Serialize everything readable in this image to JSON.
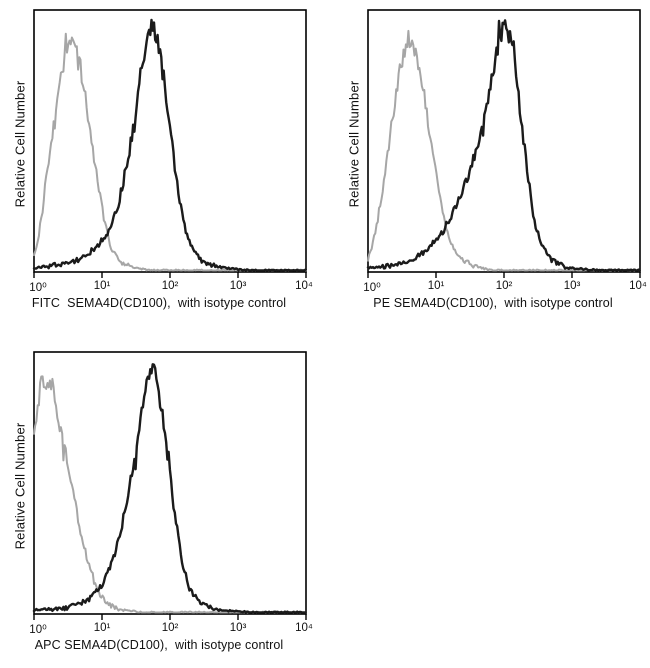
{
  "figure": {
    "background": "#ffffff",
    "frame_color": "#000000",
    "description": "Flow cytometry histogram overlays of SEMA4D (CD100) staining with isotype controls"
  },
  "chart_data": [
    {
      "type": "line",
      "panel": "top-left",
      "xlabel": "FITC  SEMA4D(CD100),  with isotype control",
      "ylabel": "Relative Cell Number",
      "x_scale": "log10",
      "x_range_log": [
        0,
        4
      ],
      "x_ticks": [
        "10⁰",
        "10¹",
        "10²",
        "10³",
        "10⁴"
      ],
      "grid": "off",
      "legend": "none",
      "series": [
        {
          "name": "isotype control",
          "color": "#a6a6a6",
          "line_width": 2,
          "points_logx_y": [
            [
              0,
              0.06
            ],
            [
              0.08,
              0.15
            ],
            [
              0.15,
              0.3
            ],
            [
              0.25,
              0.52
            ],
            [
              0.35,
              0.72
            ],
            [
              0.45,
              0.86
            ],
            [
              0.55,
              0.92
            ],
            [
              0.65,
              0.88
            ],
            [
              0.75,
              0.72
            ],
            [
              0.85,
              0.52
            ],
            [
              0.95,
              0.33
            ],
            [
              1.05,
              0.18
            ],
            [
              1.15,
              0.08
            ],
            [
              1.3,
              0.03
            ],
            [
              1.5,
              0.01
            ],
            [
              1.7,
              0
            ],
            [
              4,
              0
            ]
          ]
        },
        {
          "name": "FITC SEMA4D(CD100)",
          "color": "#1b1b1b",
          "line_width": 2.4,
          "points_logx_y": [
            [
              0,
              0.01
            ],
            [
              0.5,
              0.03
            ],
            [
              0.7,
              0.05
            ],
            [
              0.9,
              0.09
            ],
            [
              1.1,
              0.16
            ],
            [
              1.25,
              0.28
            ],
            [
              1.4,
              0.48
            ],
            [
              1.5,
              0.66
            ],
            [
              1.6,
              0.86
            ],
            [
              1.68,
              0.98
            ],
            [
              1.75,
              1.0
            ],
            [
              1.82,
              0.94
            ],
            [
              1.9,
              0.8
            ],
            [
              2.0,
              0.58
            ],
            [
              2.1,
              0.36
            ],
            [
              2.2,
              0.19
            ],
            [
              2.32,
              0.09
            ],
            [
              2.5,
              0.03
            ],
            [
              2.8,
              0.01
            ],
            [
              3.2,
              0
            ],
            [
              4,
              0
            ]
          ]
        }
      ]
    },
    {
      "type": "line",
      "panel": "top-right",
      "xlabel": "PE SEMA4D(CD100),  with isotype control",
      "ylabel": "Relative Cell Number",
      "x_scale": "log10",
      "x_range_log": [
        0,
        4
      ],
      "x_ticks": [
        "10⁰",
        "10¹",
        "10²",
        "10³",
        "10⁴"
      ],
      "grid": "off",
      "legend": "none",
      "series": [
        {
          "name": "isotype control",
          "color": "#a6a6a6",
          "line_width": 2,
          "points_logx_y": [
            [
              0,
              0.05
            ],
            [
              0.1,
              0.14
            ],
            [
              0.2,
              0.3
            ],
            [
              0.3,
              0.5
            ],
            [
              0.4,
              0.7
            ],
            [
              0.5,
              0.86
            ],
            [
              0.6,
              0.95
            ],
            [
              0.7,
              0.9
            ],
            [
              0.8,
              0.76
            ],
            [
              0.9,
              0.58
            ],
            [
              1.0,
              0.4
            ],
            [
              1.1,
              0.24
            ],
            [
              1.2,
              0.12
            ],
            [
              1.35,
              0.05
            ],
            [
              1.55,
              0.02
            ],
            [
              1.8,
              0
            ],
            [
              4,
              0
            ]
          ]
        },
        {
          "name": "PE SEMA4D(CD100)",
          "color": "#1b1b1b",
          "line_width": 2.4,
          "points_logx_y": [
            [
              0,
              0.01
            ],
            [
              0.4,
              0.02
            ],
            [
              0.7,
              0.05
            ],
            [
              0.9,
              0.09
            ],
            [
              1.1,
              0.16
            ],
            [
              1.3,
              0.26
            ],
            [
              1.5,
              0.4
            ],
            [
              1.65,
              0.55
            ],
            [
              1.8,
              0.74
            ],
            [
              1.9,
              0.9
            ],
            [
              2.0,
              1.0
            ],
            [
              2.08,
              0.96
            ],
            [
              2.16,
              0.84
            ],
            [
              2.25,
              0.62
            ],
            [
              2.35,
              0.38
            ],
            [
              2.45,
              0.2
            ],
            [
              2.55,
              0.1
            ],
            [
              2.7,
              0.04
            ],
            [
              2.95,
              0.01
            ],
            [
              3.4,
              0
            ],
            [
              4,
              0
            ]
          ]
        }
      ]
    },
    {
      "type": "line",
      "panel": "bottom-left",
      "xlabel": "APC SEMA4D(CD100),  with isotype control",
      "ylabel": "Relative Cell Number",
      "x_scale": "log10",
      "x_range_log": [
        0,
        4
      ],
      "x_ticks": [
        "10⁰",
        "10¹",
        "10²",
        "10³",
        "10⁴"
      ],
      "grid": "off",
      "legend": "none",
      "series": [
        {
          "name": "isotype control",
          "color": "#a6a6a6",
          "line_width": 2,
          "points_logx_y": [
            [
              0,
              0.7
            ],
            [
              0.06,
              0.85
            ],
            [
              0.12,
              0.95
            ],
            [
              0.2,
              0.9
            ],
            [
              0.28,
              0.93
            ],
            [
              0.35,
              0.8
            ],
            [
              0.45,
              0.68
            ],
            [
              0.55,
              0.52
            ],
            [
              0.65,
              0.38
            ],
            [
              0.75,
              0.25
            ],
            [
              0.85,
              0.15
            ],
            [
              0.95,
              0.08
            ],
            [
              1.1,
              0.03
            ],
            [
              1.3,
              0.01
            ],
            [
              1.6,
              0
            ],
            [
              4,
              0
            ]
          ]
        },
        {
          "name": "APC SEMA4D(CD100)",
          "color": "#1b1b1b",
          "line_width": 2.4,
          "points_logx_y": [
            [
              0,
              0.01
            ],
            [
              0.5,
              0.02
            ],
            [
              0.8,
              0.05
            ],
            [
              1.0,
              0.11
            ],
            [
              1.15,
              0.2
            ],
            [
              1.3,
              0.36
            ],
            [
              1.45,
              0.58
            ],
            [
              1.55,
              0.75
            ],
            [
              1.65,
              0.92
            ],
            [
              1.72,
              1.0
            ],
            [
              1.8,
              0.95
            ],
            [
              1.88,
              0.82
            ],
            [
              1.97,
              0.62
            ],
            [
              2.07,
              0.4
            ],
            [
              2.17,
              0.22
            ],
            [
              2.28,
              0.1
            ],
            [
              2.45,
              0.04
            ],
            [
              2.7,
              0.01
            ],
            [
              3.2,
              0
            ],
            [
              4,
              0
            ]
          ]
        }
      ]
    }
  ]
}
